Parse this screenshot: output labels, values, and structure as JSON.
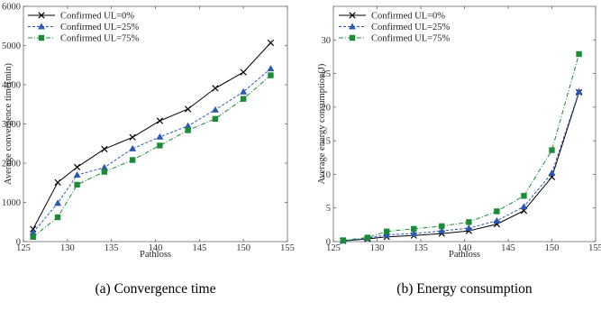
{
  "chart_data": [
    {
      "type": "line",
      "caption": "(a) Convergence time",
      "xlabel": "Pathloss",
      "ylabel": "Average convergence time(min)",
      "xlim": [
        125,
        155
      ],
      "ylim": [
        0,
        6000
      ],
      "xticks": [
        125,
        130,
        135,
        140,
        145,
        150,
        155
      ],
      "yticks": [
        0,
        1000,
        2000,
        3000,
        4000,
        5000,
        6000
      ],
      "grid": false,
      "legend_position": "top-left",
      "series": [
        {
          "name": "Confirmed UL=0%",
          "color": "#000000",
          "marker": "x",
          "dash": "solid",
          "x": [
            126.1,
            128.9,
            131.1,
            134.2,
            137.4,
            140.5,
            143.7,
            146.8,
            150.0,
            153.1
          ],
          "y": [
            320,
            1510,
            1900,
            2360,
            2660,
            3080,
            3380,
            3910,
            4320,
            5070
          ]
        },
        {
          "name": "Confirmed UL=25%",
          "color": "#2b58b5",
          "marker": "triangle",
          "dash": "dashed",
          "x": [
            126.1,
            128.9,
            131.1,
            134.2,
            137.4,
            140.5,
            143.7,
            146.8,
            150.0,
            153.1
          ],
          "y": [
            230,
            980,
            1700,
            1890,
            2370,
            2670,
            2950,
            3360,
            3820,
            4410
          ]
        },
        {
          "name": "Confirmed UL=75%",
          "color": "#1a8c38",
          "marker": "square",
          "dash": "dashdot",
          "x": [
            126.1,
            128.9,
            131.1,
            134.2,
            137.4,
            140.5,
            143.7,
            146.8,
            150.0,
            153.1
          ],
          "y": [
            120,
            620,
            1450,
            1780,
            2080,
            2450,
            2840,
            3130,
            3640,
            4240
          ]
        }
      ]
    },
    {
      "type": "line",
      "caption": "(b) Energy consumption",
      "xlabel": "Pathloss",
      "ylabel": "Average energy consumption(J)",
      "xlim": [
        125,
        155
      ],
      "ylim": [
        0,
        35
      ],
      "xticks": [
        125,
        130,
        135,
        140,
        145,
        150,
        155
      ],
      "yticks": [
        0,
        5,
        10,
        15,
        20,
        25,
        30
      ],
      "grid": false,
      "legend_position": "top-left",
      "series": [
        {
          "name": "Confirmed UL=0%",
          "color": "#000000",
          "marker": "x",
          "dash": "solid",
          "x": [
            126.1,
            128.9,
            131.1,
            134.2,
            137.4,
            140.5,
            143.7,
            146.8,
            150.0,
            153.1
          ],
          "y": [
            0.1,
            0.4,
            0.7,
            0.9,
            1.2,
            1.6,
            2.6,
            4.6,
            9.6,
            22.2
          ]
        },
        {
          "name": "Confirmed UL=25%",
          "color": "#2b58b5",
          "marker": "triangle",
          "dash": "dashed",
          "x": [
            126.1,
            128.9,
            131.1,
            134.2,
            137.4,
            140.5,
            143.7,
            146.8,
            150.0,
            153.1
          ],
          "y": [
            0.1,
            0.5,
            1.0,
            1.2,
            1.6,
            2.0,
            3.1,
            5.2,
            10.2,
            22.3
          ]
        },
        {
          "name": "Confirmed UL=75%",
          "color": "#1a8c38",
          "marker": "square",
          "dash": "dashdot",
          "x": [
            126.1,
            128.9,
            131.1,
            134.2,
            137.4,
            140.5,
            143.7,
            146.8,
            150.0,
            153.1
          ],
          "y": [
            0.2,
            0.6,
            1.5,
            1.9,
            2.3,
            2.9,
            4.5,
            6.8,
            13.6,
            27.9
          ]
        }
      ]
    }
  ]
}
